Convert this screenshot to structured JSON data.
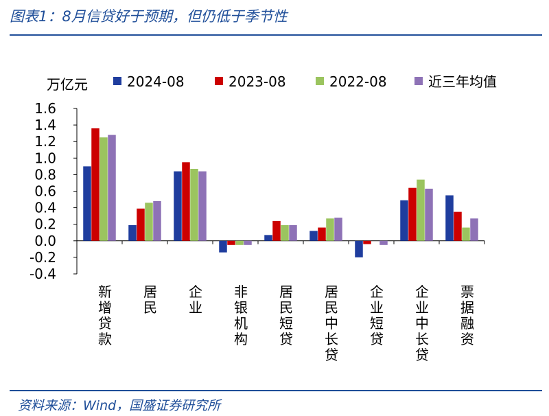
{
  "header": {
    "title": "图表1：8月信贷好于预期，但仍低于季节性"
  },
  "footer": {
    "source": "资料来源：Wind，国盛证券研究所"
  },
  "chart_data": {
    "type": "bar",
    "unit_label": "万亿元",
    "categories": [
      "新增贷款",
      "居民",
      "企业",
      "非银机构",
      "居民短贷",
      "居民中长贷",
      "企业短贷",
      "企业中长贷",
      "票据融资"
    ],
    "series": [
      {
        "name": "2024-08",
        "color": "#1f3d9e",
        "values": [
          0.9,
          0.19,
          0.84,
          -0.14,
          0.07,
          0.12,
          -0.2,
          0.49,
          0.55
        ]
      },
      {
        "name": "2023-08",
        "color": "#cc0000",
        "values": [
          1.36,
          0.39,
          0.95,
          -0.05,
          0.24,
          0.16,
          -0.04,
          0.64,
          0.35
        ]
      },
      {
        "name": "2022-08",
        "color": "#9bc45f",
        "values": [
          1.25,
          0.46,
          0.87,
          -0.05,
          0.19,
          0.27,
          0.0,
          0.74,
          0.16
        ]
      },
      {
        "name": "近三年均值",
        "color": "#8e72b6",
        "values": [
          1.28,
          0.48,
          0.84,
          -0.05,
          0.19,
          0.28,
          -0.05,
          0.63,
          0.27
        ]
      }
    ],
    "ylim": [
      -0.4,
      1.6
    ],
    "yticks": [
      "1.6",
      "1.4",
      "1.2",
      "1.0",
      "0.8",
      "0.6",
      "0.4",
      "0.2",
      "0.0",
      "-0.2",
      "-0.4"
    ],
    "legend_position": "top",
    "grid": false
  }
}
